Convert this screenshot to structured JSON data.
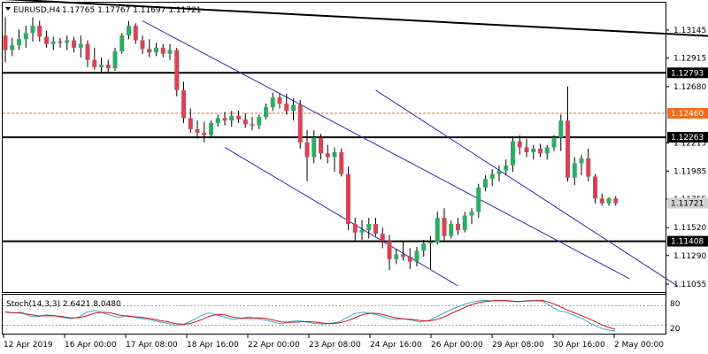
{
  "header": {
    "symbol": "EURUSD,H4",
    "ohlc": "1.17765 1.17767 1.11697 1.11721"
  },
  "stoch": {
    "label": "Stoch(14,3,3) 2.6421 8.0480",
    "level_high_label": "80",
    "level_low_label": "20",
    "main": [
      62,
      58,
      60,
      48,
      46,
      52,
      50,
      44,
      40,
      45,
      60,
      66,
      58,
      50,
      44,
      50,
      44,
      40,
      36,
      30,
      26,
      20,
      24,
      35,
      48,
      58,
      52,
      45,
      38,
      42,
      46,
      40,
      36,
      30,
      24,
      32,
      34,
      30,
      26,
      24,
      26,
      30,
      44,
      56,
      60,
      56,
      50,
      42,
      38,
      40,
      36,
      30,
      34,
      46,
      58,
      70,
      80,
      88,
      94,
      96,
      95,
      96,
      94,
      92,
      95,
      96,
      95,
      80,
      65,
      60,
      50,
      40,
      25,
      14,
      6,
      3
    ],
    "signal": [
      60,
      58,
      57,
      53,
      49,
      49,
      49,
      47,
      43,
      43,
      49,
      57,
      60,
      58,
      51,
      48,
      46,
      44,
      40,
      35,
      31,
      25,
      23,
      27,
      36,
      47,
      53,
      52,
      45,
      42,
      42,
      43,
      41,
      36,
      30,
      29,
      30,
      32,
      30,
      27,
      25,
      27,
      33,
      43,
      53,
      57,
      55,
      49,
      43,
      40,
      38,
      35,
      33,
      37,
      46,
      58,
      69,
      80,
      88,
      93,
      95,
      96,
      95,
      93,
      94,
      95,
      96,
      90,
      80,
      68,
      58,
      48,
      38,
      26,
      15,
      8
    ]
  },
  "colors": {
    "bull": "#2eac64",
    "bear": "#d64555",
    "channel": "#2a2ab0",
    "stoch_main": "#35aec6",
    "stoch_signal": "#d0121f",
    "current_price_bg": "#d0d0d0",
    "marked_level": "#f26a1b"
  },
  "chart_data": {
    "type": "candlestick",
    "symbol": "EURUSD",
    "timeframe": "H4",
    "y_ticks": [
      "1.13145",
      "1.12915",
      "1.12680",
      "1.12215",
      "1.11985",
      "1.11755",
      "1.11520",
      "1.11290",
      "1.11055"
    ],
    "x_labels": [
      "12 Apr 2019",
      "16 Apr 00:00",
      "17 Apr 08:00",
      "18 Apr 16:00",
      "22 Apr 00:00",
      "23 Apr 08:00",
      "24 Apr 16:00",
      "26 Apr 00:00",
      "29 Apr 08:00",
      "30 Apr 16:00",
      "2 May 00:00"
    ],
    "ylim": [
      1.1099,
      1.1337
    ],
    "horizontal_levels": [
      {
        "price": 1.12793,
        "label": "1.12793",
        "style": "black"
      },
      {
        "price": 1.12263,
        "label": "1.12263",
        "style": "black"
      },
      {
        "price": 1.11408,
        "label": "1.11408",
        "style": "black"
      },
      {
        "price": 1.1246,
        "label": "1.12460",
        "style": "marked"
      }
    ],
    "current_price": {
      "price": 1.11721,
      "label": "1.11721"
    },
    "trendline": {
      "from": [
        -0.5,
        1.134
      ],
      "to": [
        125,
        1.1303
      ]
    },
    "channels": [
      {
        "from": [
          20,
          1.1322
        ],
        "to": [
          91,
          1.111
        ]
      },
      {
        "from": [
          32,
          1.1218
        ],
        "to": [
          66,
          1.1104
        ]
      },
      {
        "from": [
          54,
          1.1265
        ],
        "to": [
          98,
          1.1104
        ]
      }
    ],
    "candles": [
      {
        "o": 1.131,
        "h": 1.1325,
        "l": 1.1288,
        "c": 1.1298
      },
      {
        "o": 1.1298,
        "h": 1.1308,
        "l": 1.1293,
        "c": 1.1302
      },
      {
        "o": 1.1302,
        "h": 1.1315,
        "l": 1.1298,
        "c": 1.1307
      },
      {
        "o": 1.1307,
        "h": 1.1318,
        "l": 1.13,
        "c": 1.1312
      },
      {
        "o": 1.1312,
        "h": 1.1325,
        "l": 1.1305,
        "c": 1.1318
      },
      {
        "o": 1.1318,
        "h": 1.1322,
        "l": 1.1305,
        "c": 1.1309
      },
      {
        "o": 1.1309,
        "h": 1.1314,
        "l": 1.13,
        "c": 1.1303
      },
      {
        "o": 1.1303,
        "h": 1.1309,
        "l": 1.1298,
        "c": 1.1305
      },
      {
        "o": 1.1305,
        "h": 1.1308,
        "l": 1.13,
        "c": 1.1304
      },
      {
        "o": 1.1304,
        "h": 1.131,
        "l": 1.1298,
        "c": 1.1306
      },
      {
        "o": 1.1306,
        "h": 1.1309,
        "l": 1.1296,
        "c": 1.13
      },
      {
        "o": 1.13,
        "h": 1.131,
        "l": 1.1292,
        "c": 1.1303
      },
      {
        "o": 1.1303,
        "h": 1.1306,
        "l": 1.1284,
        "c": 1.129
      },
      {
        "o": 1.129,
        "h": 1.13,
        "l": 1.1282,
        "c": 1.1284
      },
      {
        "o": 1.1284,
        "h": 1.1292,
        "l": 1.1279,
        "c": 1.1286
      },
      {
        "o": 1.1286,
        "h": 1.129,
        "l": 1.128,
        "c": 1.1283
      },
      {
        "o": 1.1283,
        "h": 1.13,
        "l": 1.1281,
        "c": 1.1297
      },
      {
        "o": 1.1297,
        "h": 1.1312,
        "l": 1.1295,
        "c": 1.131
      },
      {
        "o": 1.131,
        "h": 1.1322,
        "l": 1.1307,
        "c": 1.1318
      },
      {
        "o": 1.1318,
        "h": 1.132,
        "l": 1.1303,
        "c": 1.1306
      },
      {
        "o": 1.1306,
        "h": 1.131,
        "l": 1.1295,
        "c": 1.1299
      },
      {
        "o": 1.1299,
        "h": 1.1307,
        "l": 1.1292,
        "c": 1.1296
      },
      {
        "o": 1.1296,
        "h": 1.1304,
        "l": 1.1293,
        "c": 1.13
      },
      {
        "o": 1.13,
        "h": 1.1303,
        "l": 1.1292,
        "c": 1.1295
      },
      {
        "o": 1.1295,
        "h": 1.1303,
        "l": 1.129,
        "c": 1.1298
      },
      {
        "o": 1.1298,
        "h": 1.13,
        "l": 1.126,
        "c": 1.1265
      },
      {
        "o": 1.1265,
        "h": 1.1272,
        "l": 1.1238,
        "c": 1.1242
      },
      {
        "o": 1.1242,
        "h": 1.125,
        "l": 1.123,
        "c": 1.1233
      },
      {
        "o": 1.1233,
        "h": 1.124,
        "l": 1.1225,
        "c": 1.123
      },
      {
        "o": 1.123,
        "h": 1.1239,
        "l": 1.1222,
        "c": 1.1228
      },
      {
        "o": 1.1228,
        "h": 1.124,
        "l": 1.1226,
        "c": 1.1238
      },
      {
        "o": 1.1238,
        "h": 1.1245,
        "l": 1.1235,
        "c": 1.1242
      },
      {
        "o": 1.1242,
        "h": 1.1247,
        "l": 1.1236,
        "c": 1.124
      },
      {
        "o": 1.124,
        "h": 1.1248,
        "l": 1.1235,
        "c": 1.1244
      },
      {
        "o": 1.1244,
        "h": 1.1248,
        "l": 1.1238,
        "c": 1.1241
      },
      {
        "o": 1.1241,
        "h": 1.1246,
        "l": 1.1234,
        "c": 1.1237
      },
      {
        "o": 1.1237,
        "h": 1.1243,
        "l": 1.1232,
        "c": 1.1236
      },
      {
        "o": 1.1236,
        "h": 1.1245,
        "l": 1.1233,
        "c": 1.1243
      },
      {
        "o": 1.1243,
        "h": 1.1254,
        "l": 1.1241,
        "c": 1.1251
      },
      {
        "o": 1.1251,
        "h": 1.1263,
        "l": 1.1248,
        "c": 1.1259
      },
      {
        "o": 1.1259,
        "h": 1.1262,
        "l": 1.125,
        "c": 1.1254
      },
      {
        "o": 1.1254,
        "h": 1.1262,
        "l": 1.1245,
        "c": 1.1248
      },
      {
        "o": 1.1248,
        "h": 1.1258,
        "l": 1.124,
        "c": 1.1253
      },
      {
        "o": 1.1253,
        "h": 1.1257,
        "l": 1.1217,
        "c": 1.1222
      },
      {
        "o": 1.1222,
        "h": 1.1232,
        "l": 1.119,
        "c": 1.121
      },
      {
        "o": 1.121,
        "h": 1.1232,
        "l": 1.1205,
        "c": 1.1226
      },
      {
        "o": 1.1226,
        "h": 1.1229,
        "l": 1.1208,
        "c": 1.1213
      },
      {
        "o": 1.1213,
        "h": 1.122,
        "l": 1.1205,
        "c": 1.121
      },
      {
        "o": 1.121,
        "h": 1.1218,
        "l": 1.1198,
        "c": 1.1214
      },
      {
        "o": 1.1214,
        "h": 1.1217,
        "l": 1.1194,
        "c": 1.1196
      },
      {
        "o": 1.1196,
        "h": 1.1202,
        "l": 1.115,
        "c": 1.1155
      },
      {
        "o": 1.1155,
        "h": 1.116,
        "l": 1.114,
        "c": 1.1148
      },
      {
        "o": 1.1148,
        "h": 1.1158,
        "l": 1.1142,
        "c": 1.115
      },
      {
        "o": 1.115,
        "h": 1.116,
        "l": 1.1143,
        "c": 1.1155
      },
      {
        "o": 1.1155,
        "h": 1.116,
        "l": 1.1145,
        "c": 1.1147
      },
      {
        "o": 1.1147,
        "h": 1.1152,
        "l": 1.1135,
        "c": 1.1141
      },
      {
        "o": 1.1141,
        "h": 1.1146,
        "l": 1.1117,
        "c": 1.1126
      },
      {
        "o": 1.1126,
        "h": 1.1134,
        "l": 1.1122,
        "c": 1.113
      },
      {
        "o": 1.113,
        "h": 1.114,
        "l": 1.1125,
        "c": 1.1128
      },
      {
        "o": 1.1128,
        "h": 1.1135,
        "l": 1.1118,
        "c": 1.1124
      },
      {
        "o": 1.1124,
        "h": 1.1136,
        "l": 1.112,
        "c": 1.1133
      },
      {
        "o": 1.1133,
        "h": 1.1142,
        "l": 1.1128,
        "c": 1.1139
      },
      {
        "o": 1.1139,
        "h": 1.1145,
        "l": 1.1118,
        "c": 1.114
      },
      {
        "o": 1.114,
        "h": 1.1165,
        "l": 1.1138,
        "c": 1.116
      },
      {
        "o": 1.116,
        "h": 1.1168,
        "l": 1.114,
        "c": 1.1145
      },
      {
        "o": 1.1145,
        "h": 1.1158,
        "l": 1.1143,
        "c": 1.1155
      },
      {
        "o": 1.1155,
        "h": 1.116,
        "l": 1.1146,
        "c": 1.115
      },
      {
        "o": 1.115,
        "h": 1.1165,
        "l": 1.1148,
        "c": 1.1162
      },
      {
        "o": 1.1162,
        "h": 1.1168,
        "l": 1.1155,
        "c": 1.1165
      },
      {
        "o": 1.1165,
        "h": 1.1188,
        "l": 1.116,
        "c": 1.1185
      },
      {
        "o": 1.1185,
        "h": 1.1195,
        "l": 1.1182,
        "c": 1.1192
      },
      {
        "o": 1.1192,
        "h": 1.12,
        "l": 1.1186,
        "c": 1.1196
      },
      {
        "o": 1.1196,
        "h": 1.1203,
        "l": 1.119,
        "c": 1.1199
      },
      {
        "o": 1.1199,
        "h": 1.1208,
        "l": 1.1195,
        "c": 1.1203
      },
      {
        "o": 1.1203,
        "h": 1.1227,
        "l": 1.1198,
        "c": 1.1223
      },
      {
        "o": 1.1223,
        "h": 1.1228,
        "l": 1.1212,
        "c": 1.1218
      },
      {
        "o": 1.1218,
        "h": 1.1225,
        "l": 1.121,
        "c": 1.1214
      },
      {
        "o": 1.1214,
        "h": 1.122,
        "l": 1.1208,
        "c": 1.1217
      },
      {
        "o": 1.1217,
        "h": 1.1221,
        "l": 1.121,
        "c": 1.1213
      },
      {
        "o": 1.1213,
        "h": 1.122,
        "l": 1.1208,
        "c": 1.1218
      },
      {
        "o": 1.1218,
        "h": 1.1228,
        "l": 1.1215,
        "c": 1.1226
      },
      {
        "o": 1.1226,
        "h": 1.1245,
        "l": 1.1215,
        "c": 1.124
      },
      {
        "o": 1.124,
        "h": 1.1268,
        "l": 1.119,
        "c": 1.1193
      },
      {
        "o": 1.1193,
        "h": 1.121,
        "l": 1.1187,
        "c": 1.1205
      },
      {
        "o": 1.1205,
        "h": 1.1212,
        "l": 1.1195,
        "c": 1.1209
      },
      {
        "o": 1.1209,
        "h": 1.1217,
        "l": 1.119,
        "c": 1.1194
      },
      {
        "o": 1.1194,
        "h": 1.1196,
        "l": 1.1172,
        "c": 1.1176
      },
      {
        "o": 1.1176,
        "h": 1.118,
        "l": 1.117,
        "c": 1.1172
      },
      {
        "o": 1.1172,
        "h": 1.1177,
        "l": 1.117,
        "c": 1.1176
      },
      {
        "o": 1.1176,
        "h": 1.1178,
        "l": 1.117,
        "c": 1.1172
      }
    ]
  }
}
